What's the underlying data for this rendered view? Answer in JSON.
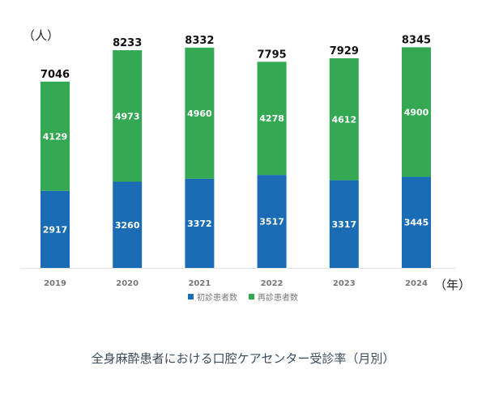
{
  "chart_data": {
    "type": "bar",
    "stacked": true,
    "title": "全身麻酔患者における口腔ケアセンター受診率（月別）",
    "ylabel": "（人）",
    "xlabel": "（年）",
    "categories": [
      "2019",
      "2020",
      "2021",
      "2022",
      "2023",
      "2024"
    ],
    "series": [
      {
        "name": "初診患者数",
        "color": "#1a6db5",
        "values": [
          2917,
          3260,
          3372,
          3517,
          3317,
          3445
        ]
      },
      {
        "name": "再診患者数",
        "color": "#34a853",
        "values": [
          4129,
          4973,
          4960,
          4278,
          4612,
          4900
        ]
      }
    ],
    "totals": [
      7046,
      8233,
      8332,
      7795,
      7929,
      8345
    ],
    "ylim": [
      0,
      9000
    ],
    "grid": false,
    "legend_position": "bottom"
  }
}
